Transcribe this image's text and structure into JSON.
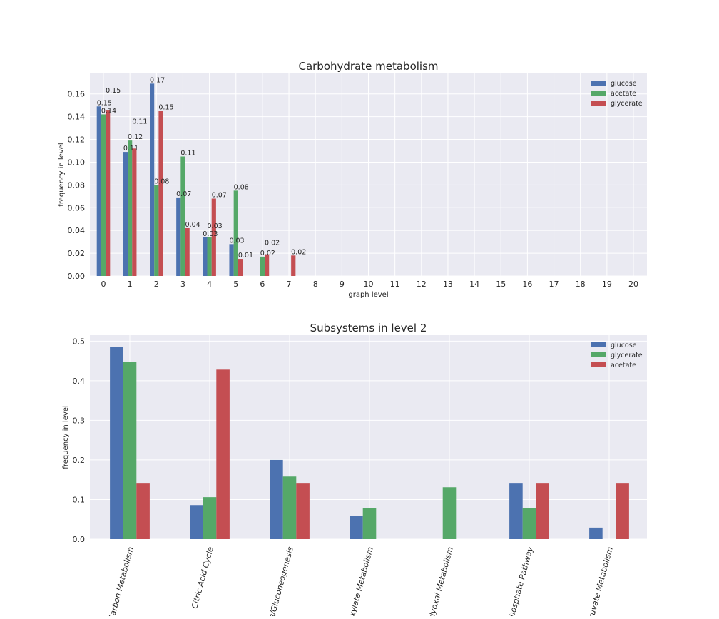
{
  "colors": {
    "blue": "#4c72b0",
    "green": "#55a868",
    "red": "#c44e52",
    "axes_bg": "#eaeaf2",
    "grid": "#ffffff"
  },
  "chart_data": [
    {
      "type": "bar",
      "title": "Carbohydrate metabolism",
      "xlabel": "graph level",
      "ylabel": "frequency in level",
      "categories": [
        "0",
        "1",
        "2",
        "3",
        "4",
        "5",
        "6",
        "7",
        "8",
        "9",
        "10",
        "11",
        "12",
        "13",
        "14",
        "15",
        "16",
        "17",
        "18",
        "19",
        "20"
      ],
      "ylim": [
        0,
        0.178
      ],
      "yticks": [
        "0.00",
        "0.02",
        "0.04",
        "0.06",
        "0.08",
        "0.10",
        "0.12",
        "0.14",
        "0.16"
      ],
      "grid": true,
      "legend": "top-right",
      "series": [
        {
          "name": "glucose",
          "color": "#4c72b0",
          "values": [
            0.149,
            0.109,
            0.169,
            0.069,
            0.034,
            0.028,
            0,
            0,
            0,
            0,
            0,
            0,
            0,
            0,
            0,
            0,
            0,
            0,
            0,
            0,
            0
          ],
          "labels": [
            "0.15",
            "0.11",
            "0.17",
            "0.07",
            "0.03",
            "0.03"
          ]
        },
        {
          "name": "acetate",
          "color": "#55a868",
          "values": [
            0.142,
            0.119,
            0.08,
            0.105,
            0.034,
            0.075,
            0.017,
            0,
            0,
            0,
            0,
            0,
            0,
            0,
            0,
            0,
            0,
            0,
            0,
            0,
            0
          ],
          "labels": [
            "0.14",
            "0.12",
            "0.08",
            "0.11",
            "0.03",
            "0.08",
            "0.02"
          ]
        },
        {
          "name": "glycerate",
          "color": "#c44e52",
          "values": [
            0.146,
            0.112,
            0.145,
            0.042,
            0.068,
            0.015,
            0.019,
            0.018,
            0,
            0,
            0,
            0,
            0,
            0,
            0,
            0,
            0,
            0,
            0,
            0,
            0
          ],
          "labels": [
            "0.15",
            "0.11",
            "0.15",
            "0.04",
            "0.07",
            "0.01",
            "0.02",
            "0.02"
          ]
        }
      ]
    },
    {
      "type": "bar",
      "title": "Subsystems in level 2",
      "xlabel": "",
      "ylabel": "frequency in level",
      "categories": [
        "Carbon Metabolism",
        "Citric Acid Cycle",
        "s/Gluconeogenesis",
        "oxylate Metabolism",
        "glyoxal Metabolism",
        "Phosphate Pathway",
        "yruvate Metabolism"
      ],
      "ylim": [
        0,
        0.515
      ],
      "yticks": [
        "0.0",
        "0.1",
        "0.2",
        "0.3",
        "0.4",
        "0.5"
      ],
      "grid": true,
      "legend": "top-right",
      "series": [
        {
          "name": "glucose",
          "color": "#4c72b0",
          "values": [
            0.486,
            0.086,
            0.2,
            0.058,
            0,
            0.142,
            0.029
          ]
        },
        {
          "name": "glycerate",
          "color": "#55a868",
          "values": [
            0.448,
            0.106,
            0.158,
            0.079,
            0.131,
            0.079,
            0
          ]
        },
        {
          "name": "acetate",
          "color": "#c44e52",
          "values": [
            0.142,
            0.428,
            0.142,
            0,
            0,
            0.142,
            0.142
          ]
        }
      ]
    }
  ]
}
